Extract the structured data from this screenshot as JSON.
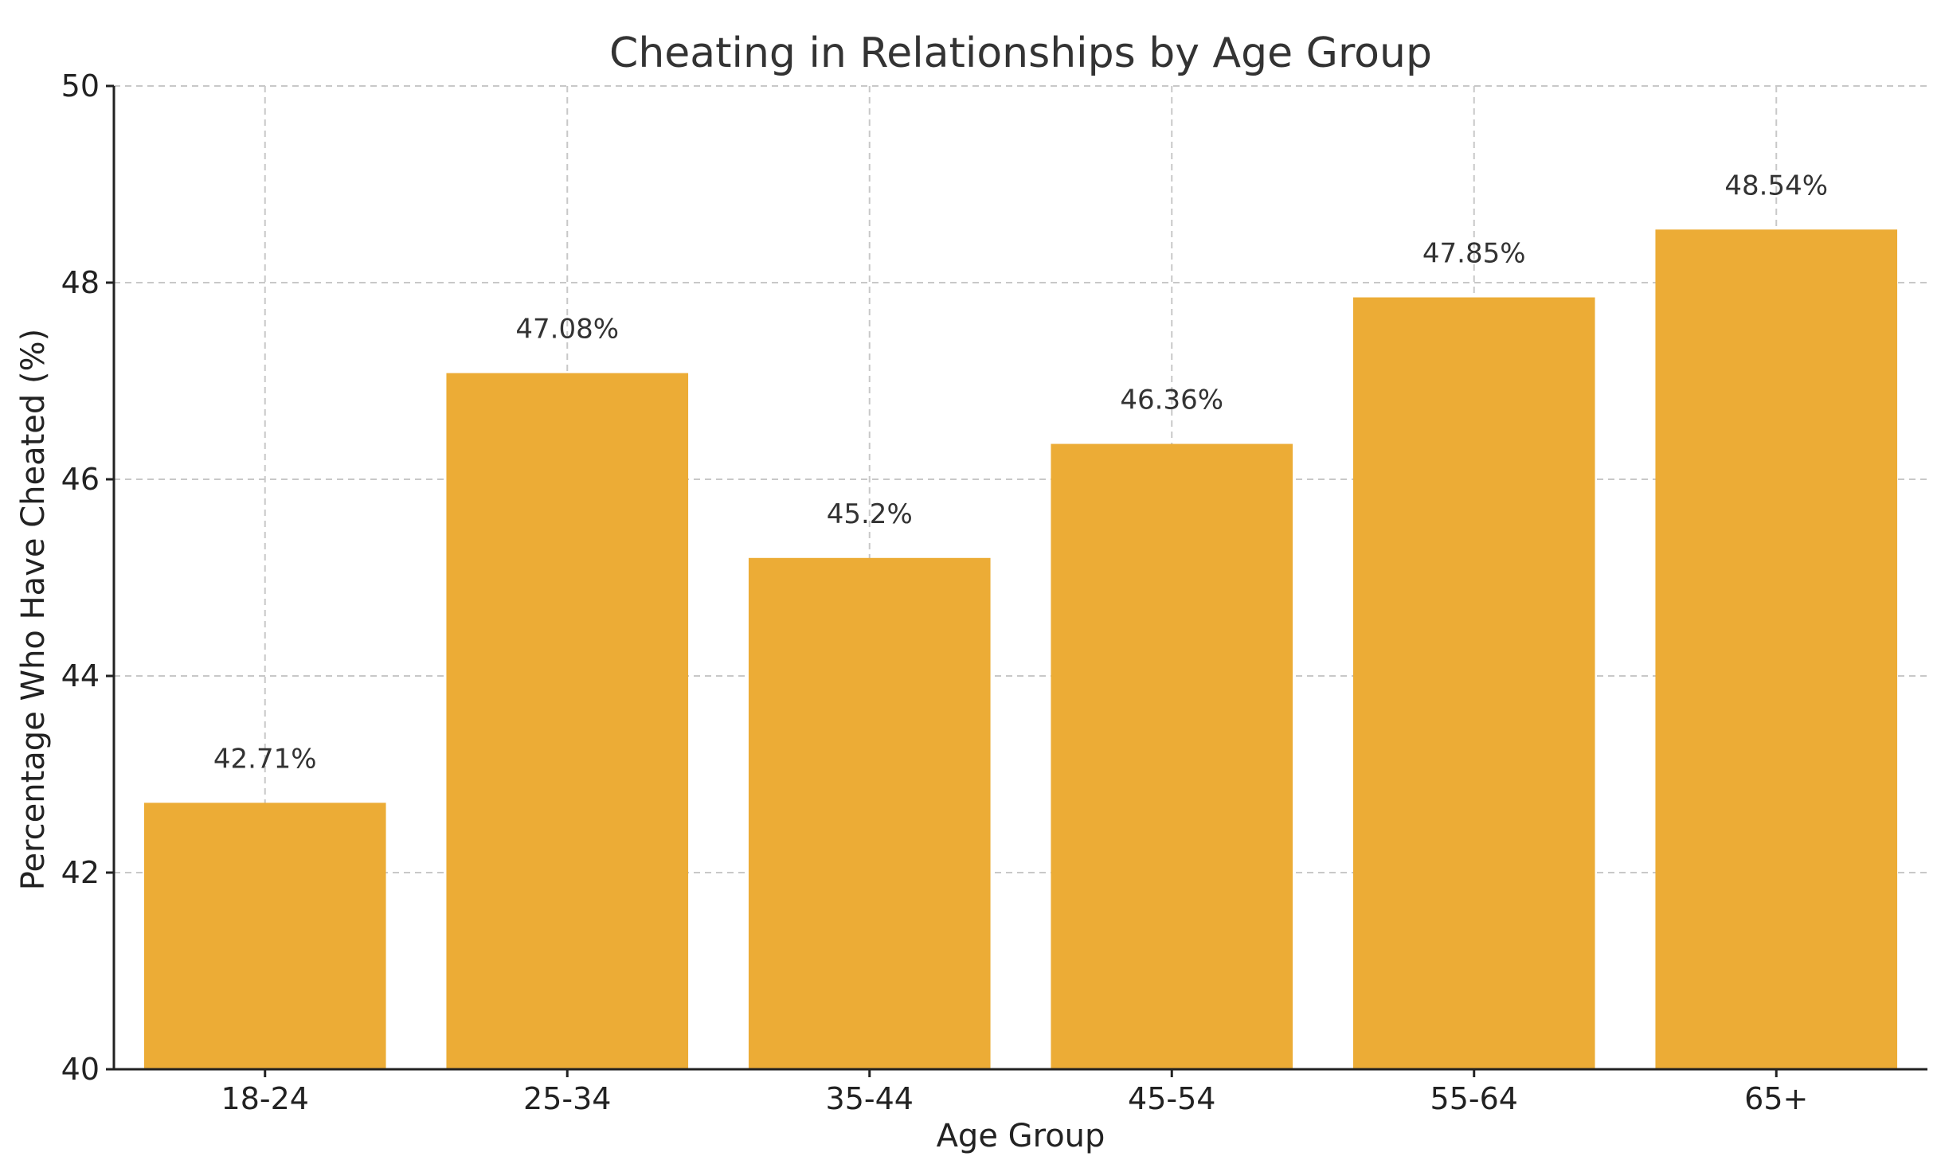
{
  "chart_data": {
    "type": "bar",
    "title": "Cheating in Relationships by Age Group",
    "xlabel": "Age Group",
    "ylabel": "Percentage Who Have Cheated (%)",
    "categories": [
      "18-24",
      "25-34",
      "35-44",
      "45-54",
      "55-64",
      "65+"
    ],
    "values": [
      42.71,
      47.08,
      45.2,
      46.36,
      47.85,
      48.54
    ],
    "value_labels": [
      "42.71%",
      "47.08%",
      "45.2%",
      "46.36%",
      "47.85%",
      "48.54%"
    ],
    "ylim": [
      40,
      50
    ],
    "yticks": [
      40,
      42,
      44,
      46,
      48,
      50
    ],
    "grid": true,
    "bar_color": "#ECAC36"
  }
}
